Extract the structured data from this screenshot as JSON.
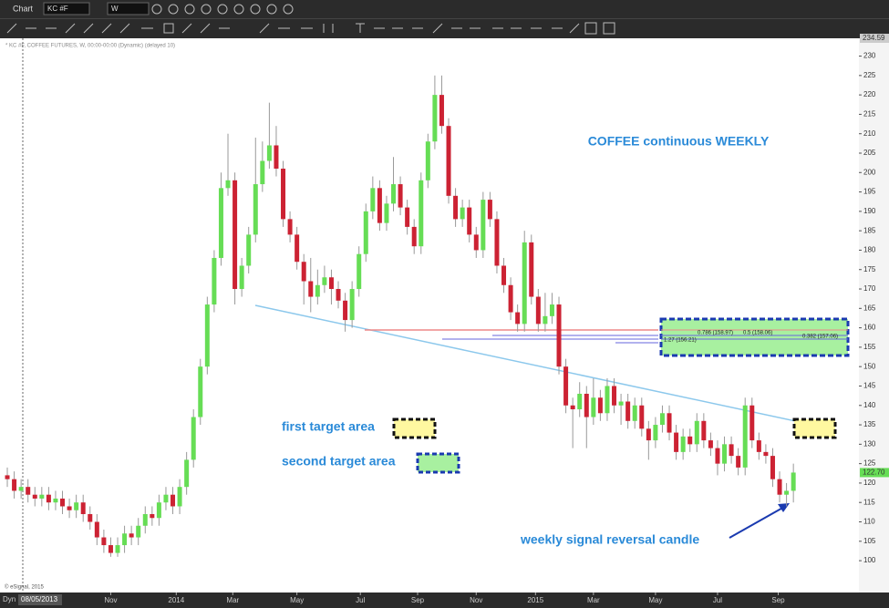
{
  "toolbar": {
    "title": "Chart",
    "symbol": "KC #F",
    "interval": "W"
  },
  "chart_data": {
    "type": "candlestick",
    "header": "* KC #F, COFFEE FUTURES, W, 00:00-00:00 (Dynamic) (delayed 10)",
    "title": "COFFEE continuous WEEKLY",
    "annotations": [
      "first target area",
      "second target area",
      "weekly signal reversal candle"
    ],
    "fib_labels": [
      "0.786 (158.97)",
      "0.5 (158.06)",
      "0.382 (157.06)",
      "1.27 (156.21)"
    ],
    "cursor_date": "08/05/2013",
    "cursor_mode": "Dyn",
    "copyright": "© eSignal, 2015",
    "up_color": "#66dd55",
    "down_color": "#cc2233",
    "open": [
      122,
      121,
      118,
      119,
      117,
      116,
      117,
      115,
      116,
      114,
      113,
      115,
      112,
      110,
      106,
      104,
      102,
      104,
      107,
      106,
      109,
      112,
      111,
      115,
      117,
      114,
      119,
      126,
      137,
      150,
      166,
      178,
      196,
      198,
      170,
      176,
      184,
      197,
      203,
      207,
      201,
      188,
      184,
      177,
      172,
      168,
      171,
      173,
      170,
      167,
      162,
      170,
      179,
      190,
      196,
      187,
      192,
      197,
      191,
      186,
      181,
      198,
      208,
      220,
      212,
      194,
      188,
      191,
      184,
      180,
      193,
      188,
      176,
      171,
      164,
      161,
      182,
      168,
      161,
      163,
      166,
      150,
      140,
      139,
      143,
      137,
      142,
      138,
      145,
      140,
      141,
      136,
      140,
      134,
      131,
      135,
      138,
      133,
      128,
      132,
      130,
      136,
      131,
      129,
      125,
      130,
      127,
      124,
      140,
      131,
      128,
      127,
      121,
      117,
      118
    ],
    "high": [
      124,
      123,
      121,
      121,
      119,
      119,
      119,
      118,
      118,
      116,
      117,
      117,
      114,
      112,
      108,
      106,
      106,
      109,
      109,
      111,
      114,
      114,
      117,
      119,
      119,
      121,
      128,
      139,
      152,
      168,
      180,
      200,
      210,
      200,
      178,
      186,
      209,
      208,
      218,
      212,
      203,
      190,
      186,
      179,
      178,
      175,
      176,
      175,
      172,
      169,
      172,
      181,
      192,
      199,
      198,
      194,
      204,
      199,
      193,
      188,
      200,
      210,
      225,
      225,
      214,
      196,
      193,
      193,
      186,
      195,
      195,
      190,
      178,
      173,
      166,
      185,
      184,
      170,
      169,
      169,
      168,
      152,
      142,
      146,
      145,
      147,
      144,
      147,
      147,
      143,
      143,
      142,
      142,
      136,
      137,
      140,
      140,
      135,
      134,
      134,
      138,
      138,
      133,
      131,
      132,
      132,
      129,
      142,
      142,
      133,
      130,
      129,
      123,
      120,
      125
    ],
    "low": [
      119,
      116,
      116,
      115,
      114,
      114,
      113,
      113,
      112,
      111,
      111,
      110,
      108,
      104,
      102,
      101,
      101,
      102,
      104,
      104,
      107,
      109,
      109,
      113,
      112,
      112,
      117,
      124,
      135,
      148,
      164,
      176,
      194,
      166,
      168,
      174,
      182,
      195,
      201,
      199,
      186,
      182,
      175,
      166,
      164,
      166,
      169,
      166,
      165,
      159,
      160,
      168,
      177,
      188,
      185,
      185,
      190,
      189,
      184,
      179,
      179,
      196,
      206,
      210,
      192,
      186,
      186,
      182,
      178,
      178,
      186,
      174,
      169,
      162,
      159,
      159,
      166,
      159,
      159,
      161,
      148,
      138,
      129,
      137,
      129,
      135,
      136,
      136,
      138,
      135,
      134,
      134,
      132,
      126,
      129,
      133,
      131,
      126,
      126,
      128,
      128,
      129,
      127,
      122,
      123,
      125,
      122,
      122,
      129,
      126,
      125,
      119,
      115,
      114,
      115
    ],
    "close": [
      121,
      118,
      119,
      117,
      116,
      117,
      115,
      116,
      114,
      113,
      115,
      112,
      110,
      106,
      104,
      102,
      104,
      107,
      106,
      109,
      112,
      111,
      115,
      117,
      114,
      119,
      126,
      137,
      150,
      166,
      178,
      196,
      198,
      170,
      176,
      184,
      197,
      203,
      207,
      201,
      188,
      184,
      177,
      172,
      168,
      171,
      173,
      170,
      167,
      162,
      170,
      179,
      190,
      196,
      187,
      192,
      197,
      191,
      186,
      181,
      198,
      208,
      220,
      212,
      194,
      188,
      191,
      184,
      180,
      193,
      188,
      176,
      171,
      164,
      161,
      182,
      168,
      161,
      163,
      166,
      150,
      140,
      139,
      143,
      137,
      142,
      138,
      145,
      140,
      141,
      136,
      140,
      134,
      131,
      135,
      138,
      133,
      128,
      132,
      130,
      136,
      131,
      129,
      125,
      130,
      127,
      124,
      140,
      131,
      128,
      127,
      121,
      117,
      118,
      122.7
    ],
    "close_labels_last": "122.70",
    "xlim": [
      -1.06,
      123.5
    ],
    "xticks": [
      {
        "value": 15,
        "label": "Nov"
      },
      {
        "value": 24.5,
        "label": "2014"
      },
      {
        "value": 32.7,
        "label": "Mar"
      },
      {
        "value": 42,
        "label": "May"
      },
      {
        "value": 51.2,
        "label": "Jul"
      },
      {
        "value": 59.5,
        "label": "Sep"
      },
      {
        "value": 68,
        "label": "Nov"
      },
      {
        "value": 76.6,
        "label": "2015"
      },
      {
        "value": 85,
        "label": "Mar"
      },
      {
        "value": 94,
        "label": "May"
      },
      {
        "value": 103,
        "label": "Jul"
      },
      {
        "value": 111.8,
        "label": "Sep"
      }
    ],
    "ylim": [
      91.8,
      234.59
    ],
    "yticks": [
      100,
      105,
      110,
      115,
      120,
      125,
      130,
      135,
      140,
      145,
      150,
      155,
      160,
      165,
      170,
      175,
      180,
      185,
      190,
      195,
      200,
      205,
      210,
      215,
      220,
      225,
      230
    ]
  }
}
